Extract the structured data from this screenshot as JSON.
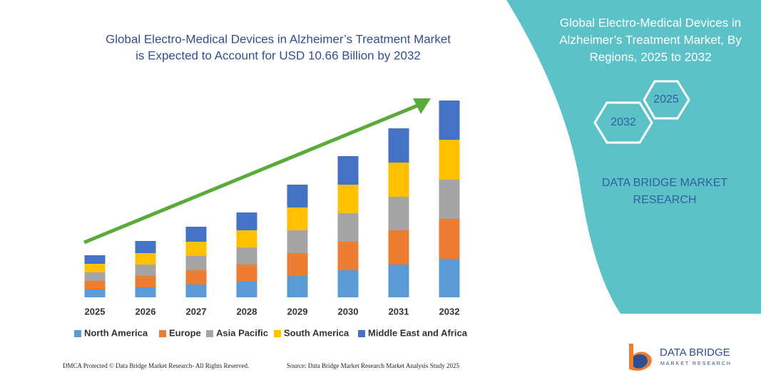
{
  "chart_data": {
    "type": "bar",
    "stacked": true,
    "title": [
      "Global Electro-Medical Devices in Alzheimer’s Treatment Market",
      "is Expected to Account for USD 10.66 Billion by 2032"
    ],
    "categories": [
      "2025",
      "2026",
      "2027",
      "2028",
      "2029",
      "2030",
      "2031",
      "2032"
    ],
    "series": [
      {
        "name": "North America",
        "color": "#5b9bd5",
        "values": [
          11,
          14,
          18,
          22,
          30,
          38,
          46,
          54
        ]
      },
      {
        "name": "Europe",
        "color": "#ed7d31",
        "values": [
          12,
          16,
          20,
          24,
          32,
          40,
          48,
          56
        ]
      },
      {
        "name": "Asia Pacific",
        "color": "#a5a5a5",
        "values": [
          12,
          16,
          20,
          24,
          32,
          40,
          47,
          55
        ]
      },
      {
        "name": "South America",
        "color": "#ffc000",
        "values": [
          12,
          16,
          20,
          24,
          32,
          40,
          48,
          56
        ]
      },
      {
        "name": "Middle East and Africa",
        "color": "#4472c4",
        "values": [
          12,
          17,
          21,
          25,
          32,
          40,
          48,
          55
        ]
      }
    ]
  },
  "panel": {
    "title": [
      "Global Electro-Medical Devices in",
      "Alzheimer’s Treatment Market, By",
      "Regions, 2025 to 2032"
    ],
    "hexagons": [
      "2025",
      "2032"
    ],
    "brand": [
      "DATA BRIDGE MARKET",
      "RESEARCH"
    ]
  },
  "logo": {
    "name": "DATA BRIDGE",
    "tagline": "MARKET RESEARCH"
  },
  "footer": {
    "left": "DMCA Protected © Data Bridge Market Research- All Rights Reserved.",
    "right": "Source: Data Bridge Market Research Market Analysis Study 2025"
  }
}
